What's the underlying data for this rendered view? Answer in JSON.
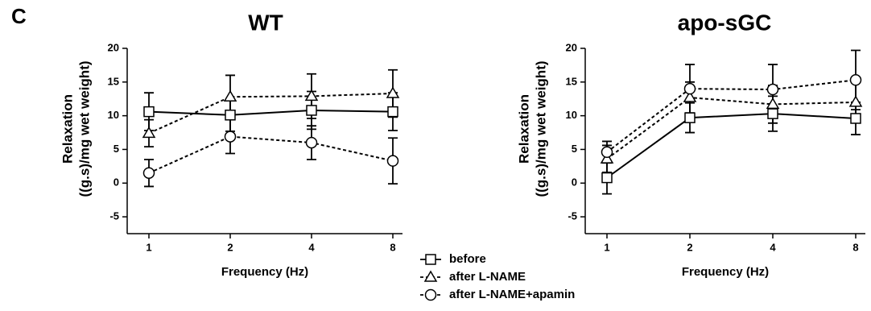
{
  "panel_label": "C",
  "chart_data": [
    {
      "type": "line",
      "title": "WT",
      "xlabel": "Frequency (Hz)",
      "ylabel": [
        "Relaxation",
        "((g.s)/mg wet weight)"
      ],
      "categories": [
        "1",
        "2",
        "4",
        "8"
      ],
      "ylim": [
        -7.5,
        20
      ],
      "yticks": [
        -5,
        0,
        5,
        10,
        15,
        20
      ],
      "series": [
        {
          "name": "before",
          "marker": "square",
          "linestyle": "solid",
          "color": "#000000",
          "values": [
            10.6,
            10.1,
            10.8,
            10.6
          ],
          "errors": [
            2.8,
            2.4,
            2.8,
            2.8
          ]
        },
        {
          "name": "after L-NAME",
          "marker": "triangle",
          "linestyle": "dashed",
          "color": "#000000",
          "values": [
            7.4,
            12.8,
            12.9,
            13.3
          ],
          "errors": [
            2.0,
            3.2,
            3.3,
            3.5
          ]
        },
        {
          "name": "after L-NAME+apamin",
          "marker": "circle",
          "linestyle": "dashed",
          "color": "#000000",
          "values": [
            1.5,
            6.9,
            6.0,
            3.3
          ],
          "errors": [
            2.0,
            2.5,
            2.5,
            3.4
          ]
        }
      ]
    },
    {
      "type": "line",
      "title": "apo-sGC",
      "xlabel": "Frequency (Hz)",
      "ylabel": [
        "Relaxation",
        "((g.s)/mg wet weight)"
      ],
      "categories": [
        "1",
        "2",
        "4",
        "8"
      ],
      "ylim": [
        -7.5,
        20
      ],
      "yticks": [
        -5,
        0,
        5,
        10,
        15,
        20
      ],
      "series": [
        {
          "marker": "square",
          "linestyle": "solid",
          "color": "#000000",
          "values": [
            0.8,
            9.7,
            10.3,
            9.6
          ],
          "errors": [
            2.4,
            2.2,
            2.6,
            2.4
          ]
        },
        {
          "marker": "triangle",
          "linestyle": "dashed",
          "color": "#000000",
          "values": [
            3.6,
            12.7,
            11.7,
            12.0
          ],
          "errors": [
            2.0,
            2.3,
            2.8,
            3.0
          ]
        },
        {
          "marker": "circle",
          "linestyle": "dashed",
          "color": "#000000",
          "values": [
            4.6,
            14.0,
            13.9,
            15.3
          ],
          "errors": [
            1.6,
            3.6,
            3.7,
            4.4
          ]
        }
      ]
    }
  ]
}
